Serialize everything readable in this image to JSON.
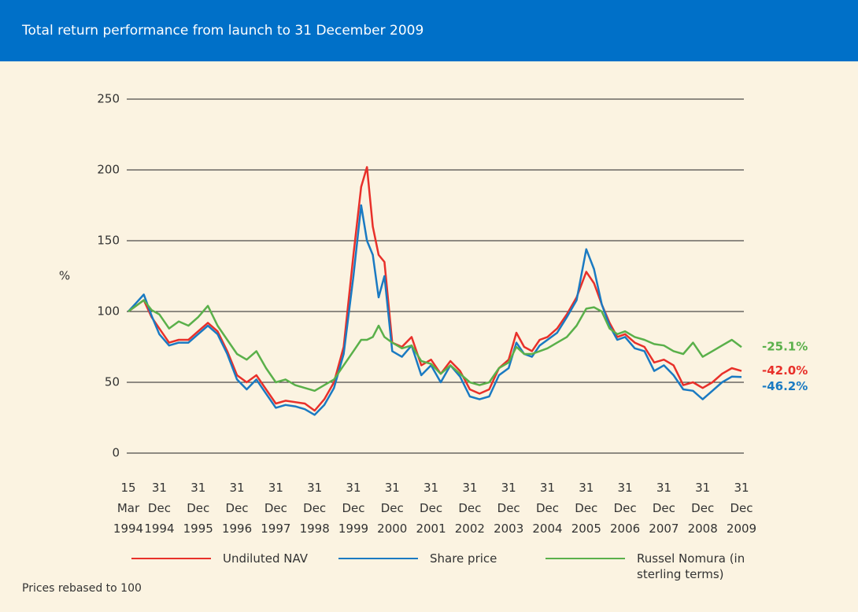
{
  "chart_data": {
    "type": "line",
    "title": "Total return performance from launch to 31 December 2009",
    "y_label": "%",
    "footnote": "Prices rebased to 100",
    "x": [
      1994.2,
      1994.4,
      1994.6,
      1994.8,
      1995.0,
      1995.25,
      1995.5,
      1995.75,
      1996.0,
      1996.25,
      1996.5,
      1996.75,
      1997.0,
      1997.25,
      1997.5,
      1997.75,
      1998.0,
      1998.25,
      1998.5,
      1998.75,
      1999.0,
      1999.25,
      1999.5,
      1999.75,
      2000.0,
      2000.2,
      2000.35,
      2000.5,
      2000.65,
      2000.8,
      2001.0,
      2001.25,
      2001.5,
      2001.75,
      2002.0,
      2002.25,
      2002.5,
      2002.75,
      2003.0,
      2003.25,
      2003.5,
      2003.75,
      2004.0,
      2004.2,
      2004.4,
      2004.6,
      2004.8,
      2005.0,
      2005.25,
      2005.5,
      2005.75,
      2006.0,
      2006.2,
      2006.4,
      2006.6,
      2006.8,
      2007.0,
      2007.25,
      2007.5,
      2007.75,
      2008.0,
      2008.25,
      2008.5,
      2008.75,
      2009.0,
      2009.25,
      2009.5,
      2009.75,
      2010.0
    ],
    "series": [
      {
        "name": "Undiluted NAV",
        "color": "#e8302a",
        "end_label": "-42.0%",
        "values": [
          100,
          104,
          108,
          96,
          88,
          78,
          80,
          80,
          86,
          92,
          86,
          72,
          55,
          50,
          55,
          45,
          35,
          37,
          36,
          35,
          30,
          38,
          50,
          75,
          140,
          188,
          202,
          160,
          140,
          135,
          78,
          75,
          82,
          62,
          66,
          56,
          65,
          58,
          45,
          42,
          45,
          60,
          66,
          85,
          75,
          72,
          80,
          82,
          88,
          98,
          110,
          128,
          120,
          105,
          92,
          82,
          84,
          78,
          75,
          64,
          66,
          62,
          48,
          50,
          46,
          50,
          56,
          60,
          58.0
        ]
      },
      {
        "name": "Share price",
        "color": "#1a7ac2",
        "end_label": "-46.2%",
        "values": [
          100,
          106,
          112,
          97,
          84,
          76,
          78,
          78,
          84,
          90,
          84,
          70,
          52,
          45,
          52,
          42,
          32,
          34,
          33,
          31,
          27,
          34,
          46,
          70,
          125,
          175,
          150,
          140,
          110,
          125,
          72,
          68,
          76,
          55,
          62,
          50,
          62,
          54,
          40,
          38,
          40,
          55,
          60,
          78,
          70,
          68,
          76,
          80,
          85,
          96,
          108,
          144,
          130,
          105,
          90,
          80,
          82,
          74,
          72,
          58,
          62,
          55,
          45,
          44,
          38,
          44,
          50,
          54,
          53.8
        ]
      },
      {
        "name": "Russel Nomura (in sterling terms)",
        "color": "#5ab04a",
        "end_label": "-25.1%",
        "values": [
          100,
          104,
          108,
          101,
          98,
          88,
          93,
          90,
          96,
          104,
          90,
          80,
          70,
          66,
          72,
          60,
          50,
          52,
          48,
          46,
          44,
          48,
          52,
          62,
          72,
          80,
          80,
          82,
          90,
          82,
          78,
          74,
          76,
          65,
          63,
          56,
          62,
          56,
          50,
          48,
          50,
          60,
          64,
          75,
          70,
          70,
          72,
          74,
          78,
          82,
          90,
          102,
          103,
          100,
          88,
          84,
          86,
          82,
          80,
          77,
          76,
          72,
          70,
          78,
          68,
          72,
          76,
          80,
          74.9
        ]
      }
    ],
    "xlim": [
      1994.2,
      2010.0
    ],
    "xticks": [
      {
        "value": 1994.2,
        "label": "15 Mar 1994"
      },
      {
        "value": 1995.0,
        "label": "31 Dec 1994"
      },
      {
        "value": 1996.0,
        "label": "31 Dec 1995"
      },
      {
        "value": 1997.0,
        "label": "31 Dec 1996"
      },
      {
        "value": 1998.0,
        "label": "31 Dec 1997"
      },
      {
        "value": 1999.0,
        "label": "31 Dec 1998"
      },
      {
        "value": 2000.0,
        "label": "31 Dec 1999"
      },
      {
        "value": 2001.0,
        "label": "31 Dec 2000"
      },
      {
        "value": 2002.0,
        "label": "31 Dec 2001"
      },
      {
        "value": 2003.0,
        "label": "31 Dec 2002"
      },
      {
        "value": 2004.0,
        "label": "31 Dec 2003"
      },
      {
        "value": 2005.0,
        "label": "31 Dec 2004"
      },
      {
        "value": 2006.0,
        "label": "31 Dec 2005"
      },
      {
        "value": 2007.0,
        "label": "31 Dec 2006"
      },
      {
        "value": 2008.0,
        "label": "31 Dec 2007"
      },
      {
        "value": 2009.0,
        "label": "31 Dec 2008"
      },
      {
        "value": 2010.0,
        "label": "31 Dec 2009"
      }
    ],
    "ylim": [
      0,
      250
    ],
    "yticks": [
      0,
      50,
      100,
      150,
      200,
      250
    ],
    "grid": true
  }
}
